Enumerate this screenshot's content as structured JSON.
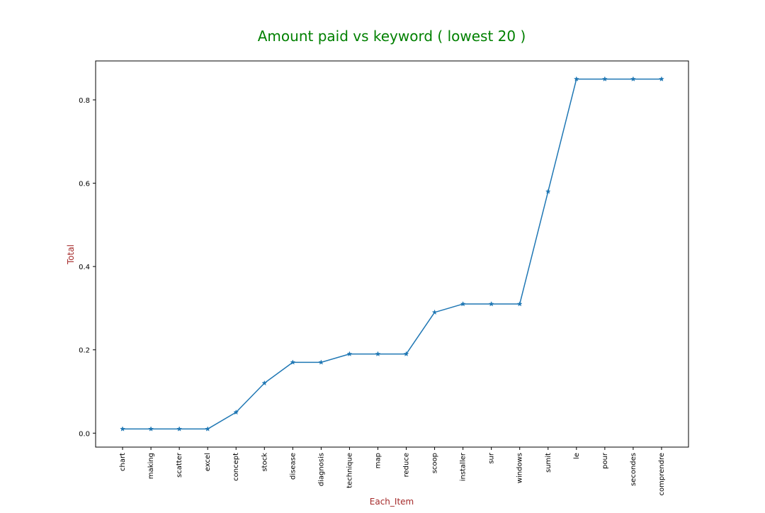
{
  "chart_data": {
    "type": "line",
    "title": "Amount paid vs keyword ( lowest 20 )",
    "xlabel": "Each_Item",
    "ylabel": "Total",
    "categories": [
      "chart",
      "making",
      "scatter",
      "excel",
      "concept",
      "stock",
      "disease",
      "diagnosis",
      "technique",
      "map",
      "reduce",
      "scoop",
      "installer",
      "sur",
      "windows",
      "sumit",
      "le",
      "pour",
      "secondes",
      "comprendre"
    ],
    "values": [
      0.01,
      0.01,
      0.01,
      0.01,
      0.05,
      0.12,
      0.17,
      0.17,
      0.19,
      0.19,
      0.19,
      0.29,
      0.31,
      0.31,
      0.31,
      0.58,
      0.85,
      0.85,
      0.85,
      0.85
    ],
    "yticks": [
      0.0,
      0.2,
      0.4,
      0.6,
      0.8
    ],
    "ytick_labels": [
      "0.0",
      "0.2",
      "0.4",
      "0.6",
      "0.8"
    ],
    "ylim": [
      -0.0335,
      0.8935
    ],
    "marker": "star",
    "grid": false,
    "legend": "none",
    "colors": {
      "line": "#1f77b4",
      "title": "#008000",
      "axis_label": "#a52a2a",
      "text": "#000000",
      "frame": "#000000"
    }
  }
}
